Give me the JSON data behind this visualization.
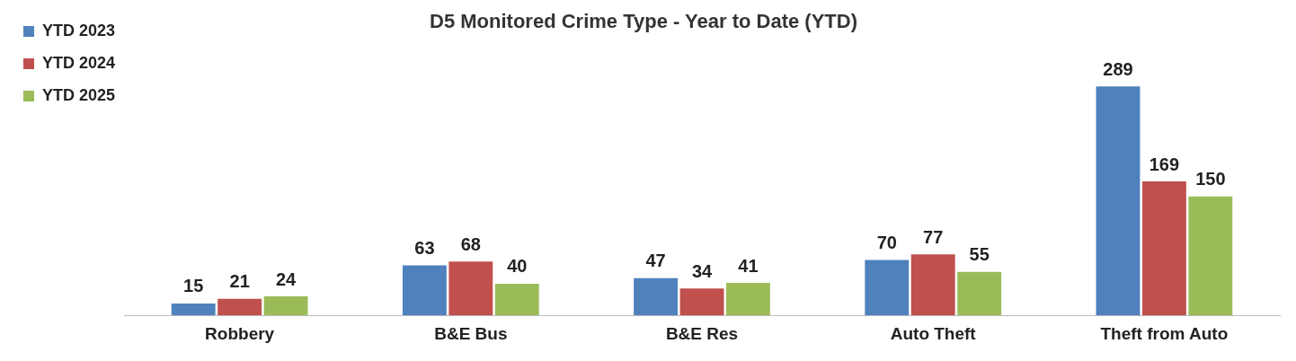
{
  "chart_data": {
    "type": "bar",
    "title": "D5 Monitored Crime Type - Year to Date (YTD)",
    "categories": [
      "Robbery",
      "B&E Bus",
      "B&E Res",
      "Auto Theft",
      "Theft from Auto"
    ],
    "series": [
      {
        "name": "YTD 2023",
        "color": "#4f81bd",
        "values": [
          15,
          63,
          47,
          70,
          289
        ]
      },
      {
        "name": "YTD 2024",
        "color": "#c0504d",
        "values": [
          21,
          68,
          34,
          77,
          169
        ]
      },
      {
        "name": "YTD 2025",
        "color": "#9bbb59",
        "values": [
          24,
          40,
          41,
          55,
          150
        ]
      }
    ],
    "data_labels": true,
    "legend": "top left",
    "grid": false
  }
}
